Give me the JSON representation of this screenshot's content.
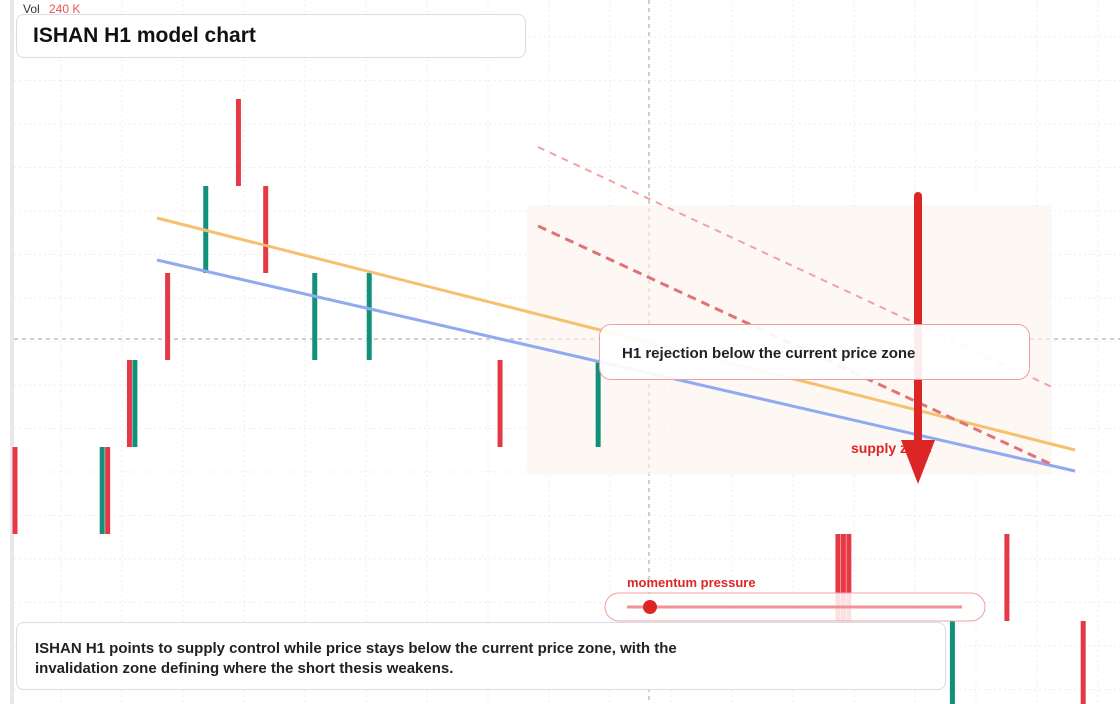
{
  "header": {
    "volume_label": "Vol",
    "volume_value": "240 K",
    "title": "ISHAN H1 model chart"
  },
  "annotations": {
    "rejection": "H1 rejection below the current price zone",
    "supply": "supply zone",
    "momentum": "momentum pressure"
  },
  "caption": "ISHAN H1 points to supply control while price stays below the current price zone, with the invalidation zone defining where the short thesis weakens.",
  "candles": {
    "t": [
      0,
      16,
      17,
      21,
      22,
      28,
      35,
      41,
      46,
      55,
      65,
      89,
      107,
      151,
      152,
      153,
      172,
      182,
      196
    ],
    "open": [
      3,
      2,
      3,
      4,
      3,
      5,
      5,
      7,
      6,
      4,
      4,
      4,
      3,
      2,
      2,
      2,
      0,
      2,
      1
    ],
    "close": [
      2,
      3,
      2,
      3,
      4,
      4,
      6,
      6,
      5,
      5,
      5,
      3,
      4,
      1,
      1,
      1,
      1,
      1,
      0
    ]
  }
}
